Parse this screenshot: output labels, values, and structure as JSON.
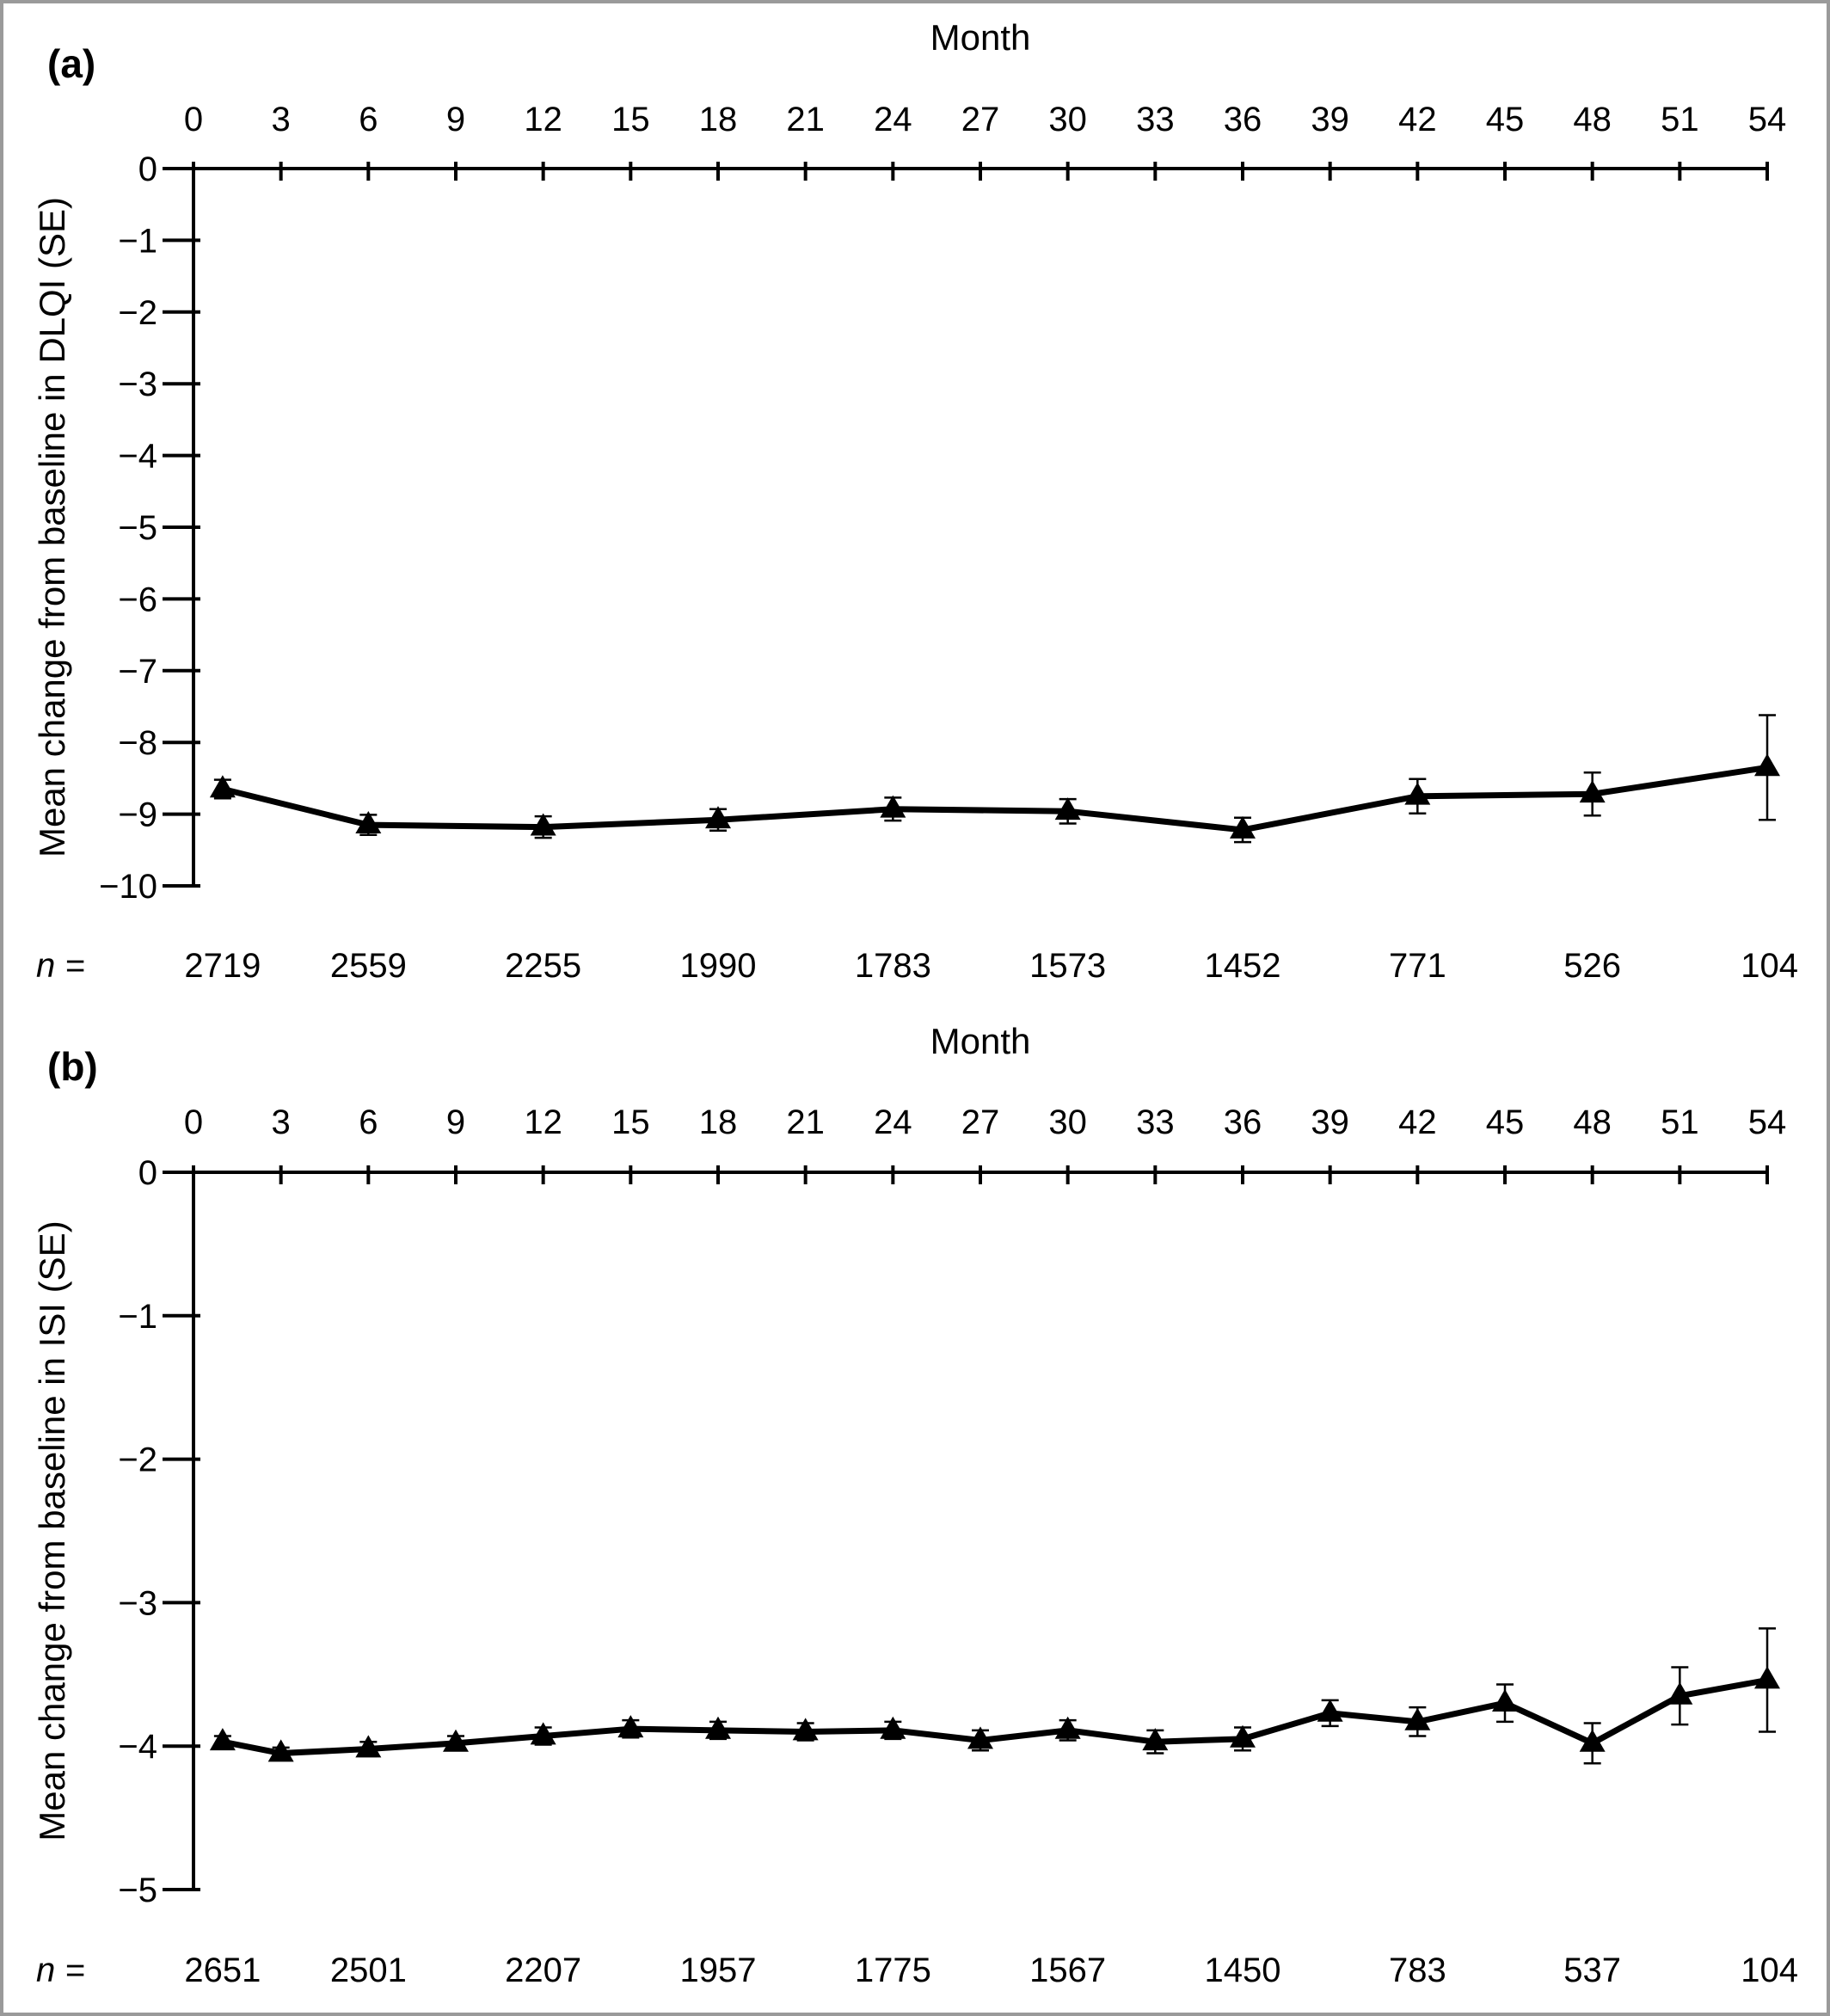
{
  "chart_data": [
    {
      "type": "line",
      "panel_label": "(a)",
      "xlabel": "Month",
      "ylabel": "Mean change from baseline in DLQI (SE)",
      "xlim": [
        0,
        54
      ],
      "ylim": [
        -10,
        0
      ],
      "x_ticks": [
        0,
        3,
        6,
        9,
        12,
        15,
        18,
        21,
        24,
        27,
        30,
        33,
        36,
        39,
        42,
        45,
        48,
        51,
        54
      ],
      "x_tick_labels": [
        "0",
        "3",
        "6",
        "9",
        "12",
        "15",
        "18",
        "21",
        "24",
        "27",
        "30",
        "33",
        "36",
        "39",
        "42",
        "45",
        "48",
        "51",
        "54"
      ],
      "y_ticks": [
        0,
        -1,
        -2,
        -3,
        -4,
        -5,
        -6,
        -7,
        -8,
        -9,
        -10
      ],
      "y_tick_labels": [
        "0",
        "−1",
        "−2",
        "−3",
        "−4",
        "−5",
        "−6",
        "−7",
        "−8",
        "−9",
        "−10"
      ],
      "grid": false,
      "series": [
        {
          "x": [
            1,
            6,
            12,
            18,
            24,
            30,
            36,
            42,
            48,
            54
          ],
          "y": [
            -8.65,
            -9.15,
            -9.18,
            -9.08,
            -8.93,
            -8.96,
            -9.22,
            -8.75,
            -8.72,
            -8.35
          ],
          "se": [
            0.13,
            0.14,
            0.15,
            0.15,
            0.16,
            0.17,
            0.17,
            0.24,
            0.3,
            0.73
          ]
        }
      ],
      "n_prefix": "n =",
      "n_at_risk": {
        "x": [
          1,
          6,
          12,
          18,
          24,
          30,
          36,
          42,
          48,
          54
        ],
        "labels": [
          "2719",
          "2559",
          "2255",
          "1990",
          "1783",
          "1573",
          "1452",
          "771",
          "526",
          "104"
        ]
      }
    },
    {
      "type": "line",
      "panel_label": "(b)",
      "xlabel": "Month",
      "ylabel": "Mean change from baseline in ISI (SE)",
      "xlim": [
        0,
        54
      ],
      "ylim": [
        -5,
        0
      ],
      "x_ticks": [
        0,
        3,
        6,
        9,
        12,
        15,
        18,
        21,
        24,
        27,
        30,
        33,
        36,
        39,
        42,
        45,
        48,
        51,
        54
      ],
      "x_tick_labels": [
        "0",
        "3",
        "6",
        "9",
        "12",
        "15",
        "18",
        "21",
        "24",
        "27",
        "30",
        "33",
        "36",
        "39",
        "42",
        "45",
        "48",
        "51",
        "54"
      ],
      "y_ticks": [
        0,
        -1,
        -2,
        -3,
        -4,
        -5
      ],
      "y_tick_labels": [
        "0",
        "−1",
        "−2",
        "−3",
        "−4",
        "−5"
      ],
      "grid": false,
      "series": [
        {
          "x": [
            1,
            3,
            6,
            9,
            12,
            15,
            18,
            21,
            24,
            27,
            30,
            33,
            36,
            39,
            42,
            45,
            48,
            51,
            54
          ],
          "y": [
            -3.97,
            -4.05,
            -4.02,
            -3.98,
            -3.93,
            -3.88,
            -3.89,
            -3.9,
            -3.89,
            -3.96,
            -3.89,
            -3.97,
            -3.95,
            -3.77,
            -3.83,
            -3.7,
            -3.98,
            -3.65,
            -3.54
          ],
          "se": [
            0.04,
            0.04,
            0.05,
            0.05,
            0.06,
            0.06,
            0.06,
            0.06,
            0.06,
            0.07,
            0.07,
            0.08,
            0.08,
            0.09,
            0.1,
            0.13,
            0.14,
            0.2,
            0.36
          ]
        }
      ],
      "n_prefix": "n =",
      "n_at_risk": {
        "x": [
          1,
          6,
          12,
          18,
          24,
          30,
          36,
          42,
          48,
          54
        ],
        "labels": [
          "2651",
          "2501",
          "2207",
          "1957",
          "1775",
          "1567",
          "1450",
          "783",
          "537",
          "104"
        ]
      }
    }
  ]
}
